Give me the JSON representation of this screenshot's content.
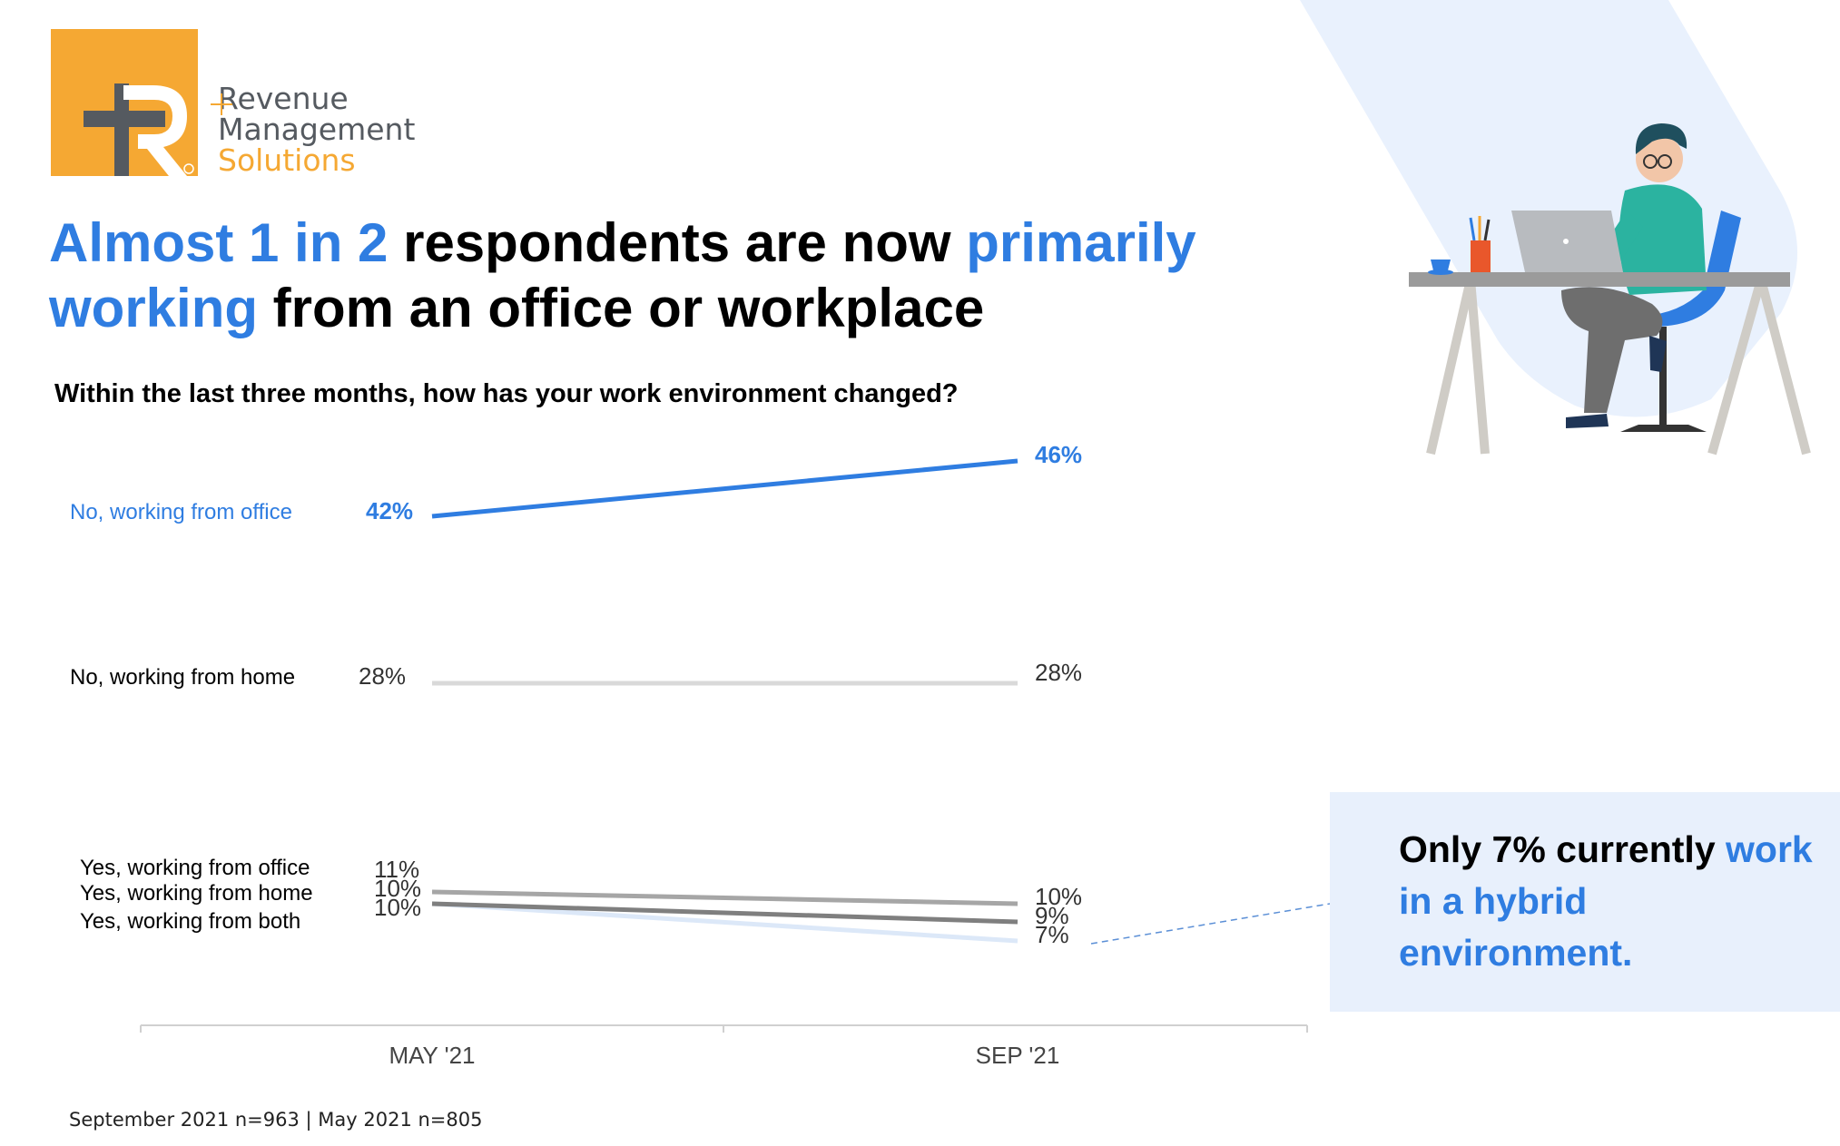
{
  "logo": {
    "brand_line1": "Revenue",
    "brand_line2": "Management",
    "brand_line3": "Solutions",
    "colors": {
      "orange": "#F5A833",
      "dark": "#555a60"
    }
  },
  "headline": {
    "part1": "Almost 1 in 2",
    "part2": " respondents are now ",
    "part3": "primarily working",
    "part4": " from an office or workplace"
  },
  "callout": {
    "line1": "Only 7% currently ",
    "line2": "work in a hybrid environment."
  },
  "footnote": "September 2021 n=963 | May 2021 n=805",
  "chart_data": {
    "type": "line",
    "title": "Within the last three months, how has your work environment changed?",
    "categories": [
      "MAY '21",
      "SEP '21"
    ],
    "series": [
      {
        "name": "No, working from office",
        "values": [
          42,
          46
        ],
        "labels": [
          "42%",
          "46%"
        ],
        "color": "#2F7DE1"
      },
      {
        "name": "No, working from home",
        "values": [
          28,
          28
        ],
        "labels": [
          "28%",
          "28%"
        ],
        "color": "#D9D9D9"
      },
      {
        "name": "Yes, working from office",
        "values": [
          11,
          10
        ],
        "labels": [
          "11%",
          "10%"
        ],
        "color": "#A6A6A6"
      },
      {
        "name": "Yes, working from home",
        "values": [
          10,
          9
        ],
        "labels": [
          "10%",
          "9%"
        ],
        "color": "#7F7F7F"
      },
      {
        "name": "Yes, working from both",
        "values": [
          10,
          7
        ],
        "labels": [
          "10%",
          "7%"
        ],
        "color": "#DCE8F8"
      }
    ],
    "grid": false,
    "legend": "left"
  },
  "colors": {
    "accent": "#2F7DE1",
    "callout_bg": "#E8F0FC"
  }
}
